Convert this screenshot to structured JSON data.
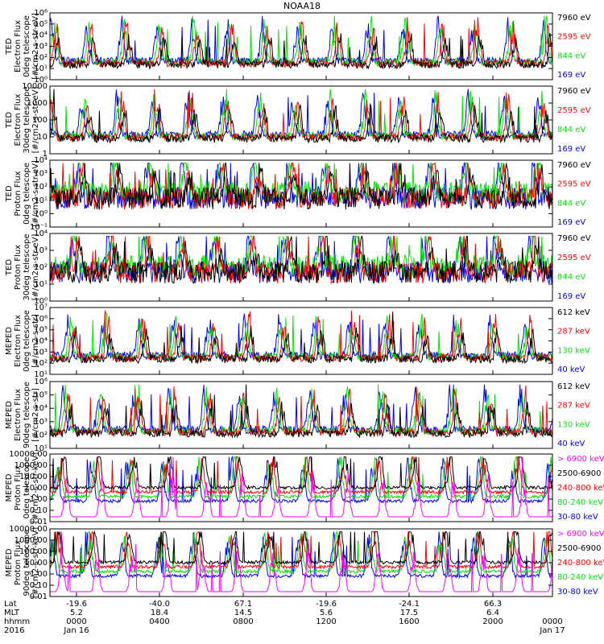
{
  "title": "NOAA18",
  "colors": {
    "black": "#000000",
    "red": "#ff0000",
    "green": "#00e600",
    "blue": "#0000ff",
    "magenta": "#ff00ff"
  },
  "footer": {
    "row_labels": [
      "Lat",
      "MLT",
      "hhmm",
      "2016"
    ],
    "columns": [
      {
        "lat": "-19.6",
        "mlt": "5.2",
        "hhmm": "0000",
        "date": "Jan 16"
      },
      {
        "lat": "-40.0",
        "mlt": "18.4",
        "hhmm": "0400",
        "date": ""
      },
      {
        "lat": "67.1",
        "mlt": "14.5",
        "hhmm": "0800",
        "date": ""
      },
      {
        "lat": "-19.6",
        "mlt": "5.6",
        "hhmm": "1200",
        "date": ""
      },
      {
        "lat": "-24.1",
        "mlt": "17.5",
        "hhmm": "1600",
        "date": ""
      },
      {
        "lat": "66.3",
        "mlt": "6.4",
        "hhmm": "2000",
        "date": ""
      },
      {
        "lat": "",
        "mlt": "",
        "hhmm": "0000",
        "date": "Jan 17"
      }
    ]
  },
  "chart_data": [
    {
      "type": "line",
      "ylabel_lines": [
        "TED",
        "Electron Flux",
        "0deg telescope",
        "[#/cm2-s-str-eV]"
      ],
      "y_scale": "log",
      "ytick_labels": [
        "10⁰",
        "10¹",
        "10²",
        "10³",
        "10⁴",
        "10⁵",
        "10⁶"
      ],
      "series": [
        {
          "name": "7960 eV",
          "color": "black"
        },
        {
          "name": "2595 eV",
          "color": "red"
        },
        {
          "name": "844 eV",
          "color": "green"
        },
        {
          "name": "169 eV",
          "color": "blue"
        }
      ]
    },
    {
      "type": "line",
      "ylabel_lines": [
        "TED",
        "Electron Flux",
        "30deg telescope",
        "[#/cm2-s-str-eV]"
      ],
      "y_scale": "log",
      "ytick_labels": [
        "1",
        "10",
        "100",
        "1000",
        "10000"
      ],
      "series": [
        {
          "name": "7960 eV",
          "color": "black"
        },
        {
          "name": "2595 eV",
          "color": "red"
        },
        {
          "name": "844 eV",
          "color": "green"
        },
        {
          "name": "169 eV",
          "color": "blue"
        }
      ]
    },
    {
      "type": "line",
      "ylabel_lines": [
        "TED",
        "Proton Flux",
        "0deg telescope",
        "[#/cm2-s-str-eV]"
      ],
      "y_scale": "log",
      "ytick_labels": [
        "10⁻¹",
        "10⁰",
        "10¹",
        "10²",
        "10³",
        "10⁴"
      ],
      "series": [
        {
          "name": "7960 eV",
          "color": "black"
        },
        {
          "name": "2595 eV",
          "color": "red"
        },
        {
          "name": "844 eV",
          "color": "green"
        },
        {
          "name": "169 eV",
          "color": "blue"
        }
      ]
    },
    {
      "type": "line",
      "ylabel_lines": [
        "TED",
        "Proton Flux",
        "30deg telescope",
        "[#/cm2-s-str-eV]"
      ],
      "y_scale": "log",
      "ytick_labels": [
        "10⁰",
        "10¹",
        "10²",
        "10³",
        "10⁴"
      ],
      "series": [
        {
          "name": "7960 eV",
          "color": "black"
        },
        {
          "name": "2595 eV",
          "color": "red"
        },
        {
          "name": "844 eV",
          "color": "green"
        },
        {
          "name": "169 eV",
          "color": "blue"
        }
      ]
    },
    {
      "type": "line",
      "ylabel_lines": [
        "MEPED",
        "Electron Flux",
        "0deg telescope",
        "[#/cm2-s-str]"
      ],
      "y_scale": "log",
      "ytick_labels": [
        "10¹",
        "10²",
        "10³",
        "10⁴",
        "10⁵",
        "10⁶",
        "10⁷"
      ],
      "series": [
        {
          "name": "612 keV",
          "color": "black"
        },
        {
          "name": "287 keV",
          "color": "red"
        },
        {
          "name": "130 keV",
          "color": "green"
        },
        {
          "name": "40 keV",
          "color": "blue"
        }
      ]
    },
    {
      "type": "line",
      "ylabel_lines": [
        "MEPED",
        "Electron Flux",
        "90deg telescope",
        "[#/cm2-s-str]"
      ],
      "y_scale": "log",
      "ytick_labels": [
        "10¹",
        "10²",
        "10³",
        "10⁴",
        "10⁵",
        "10⁶"
      ],
      "series": [
        {
          "name": "612 keV",
          "color": "black"
        },
        {
          "name": "287 keV",
          "color": "red"
        },
        {
          "name": "130 keV",
          "color": "green"
        },
        {
          "name": "40 keV",
          "color": "blue"
        }
      ]
    },
    {
      "type": "line",
      "ylabel_lines": [
        "MEPED",
        "Proton Flux",
        "0deg telescope",
        "[#/cm2-s-str-keV]"
      ],
      "y_scale": "log",
      "ytick_labels": [
        "0.01",
        "0.10",
        "1.00",
        "10.00",
        "100.00",
        "1000.00",
        "10000.00"
      ],
      "series": [
        {
          "name": "> 6900 keV",
          "color": "magenta"
        },
        {
          "name": "2500-6900",
          "color": "black"
        },
        {
          "name": "240-800 keV",
          "color": "red"
        },
        {
          "name": "80-240 keV",
          "color": "green"
        },
        {
          "name": "30-80 keV",
          "color": "blue"
        }
      ]
    },
    {
      "type": "line",
      "ylabel_lines": [
        "MEPED",
        "Proton Flux",
        "90deg telescope",
        "[#/cm2-s-str-keV]"
      ],
      "y_scale": "log",
      "ytick_labels": [
        "0.01",
        "0.10",
        "1.00",
        "10.00",
        "100.00",
        "1000.00",
        "10000.00"
      ],
      "series": [
        {
          "name": "> 6900 keV",
          "color": "magenta"
        },
        {
          "name": "2500-6900",
          "color": "black"
        },
        {
          "name": "240-800 keV",
          "color": "red"
        },
        {
          "name": "80-240 keV",
          "color": "green"
        },
        {
          "name": "30-80 keV",
          "color": "blue"
        }
      ]
    }
  ]
}
